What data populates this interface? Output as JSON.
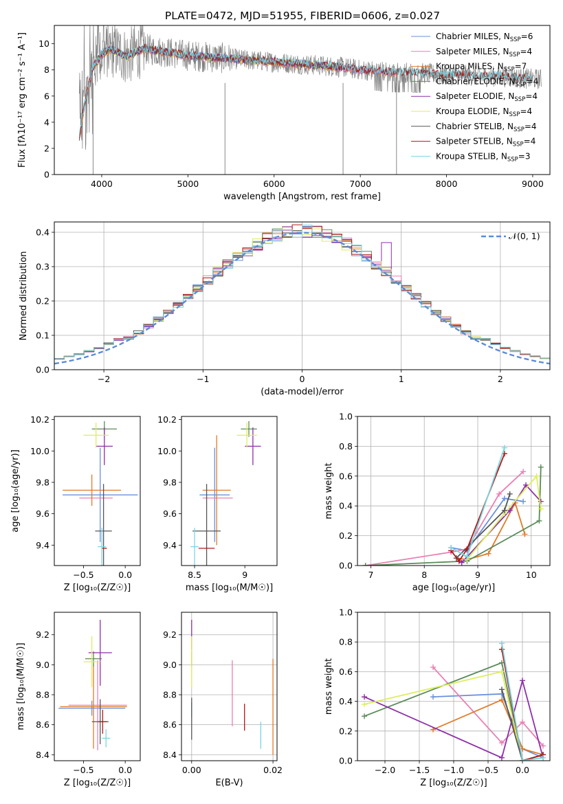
{
  "figure_title": "PLATE=0472, MJD=51955, FIBERID=0606, z=0.027",
  "colors": {
    "Chabrier MILES": "#6a8fdc",
    "Salpeter MILES": "#e87fb4",
    "Kroupa MILES": "#e07b28",
    "Chabrier ELODIE": "#5a8a5a",
    "Salpeter ELODIE": "#8e2ea8",
    "Kroupa ELODIE": "#dcee5a",
    "Chabrier STELIB": "#555555",
    "Salpeter STELIB": "#b01818",
    "Kroupa STELIB": "#7ad6e0",
    "data": "#808080",
    "normal": "#5b8bd6"
  },
  "chart_data": [
    {
      "type": "line",
      "id": "spectrum",
      "xlabel": "wavelength [Angstrom, rest frame]",
      "ylabel": "Flux [fλ10⁻¹⁷ erg cm⁻² s⁻¹ A⁻¹]",
      "xlim": [
        3450,
        9200
      ],
      "ylim": [
        0,
        11.4
      ],
      "xticks": [
        4000,
        5000,
        6000,
        7000,
        8000,
        9000
      ],
      "yticks": [
        0,
        2,
        4,
        6,
        8,
        10
      ],
      "legend": [
        {
          "label": "Chabrier MILES, N",
          "sub": "SSP",
          "eq": "=6"
        },
        {
          "label": "Salpeter MILES, N",
          "sub": "SSP",
          "eq": "=4"
        },
        {
          "label": "Kroupa MILES, N",
          "sub": "SSP",
          "eq": "=7"
        },
        {
          "label": "Chabrier ELODIE, N",
          "sub": "SSP",
          "eq": "=4"
        },
        {
          "label": "Salpeter ELODIE, N",
          "sub": "SSP",
          "eq": "=4"
        },
        {
          "label": "Kroupa ELODIE, N",
          "sub": "SSP",
          "eq": "=4"
        },
        {
          "label": "Chabrier STELIB, N",
          "sub": "SSP",
          "eq": "=4"
        },
        {
          "label": "Salpeter STELIB, N",
          "sub": "SSP",
          "eq": "=4"
        },
        {
          "label": "Kroupa STELIB, N",
          "sub": "SSP",
          "eq": "=3"
        }
      ],
      "legend_placement": "upper right",
      "data_envelope": {
        "x": [
          3740,
          3800,
          3900,
          4000,
          4100,
          4200,
          4300,
          4400,
          4500,
          4600,
          4700,
          4800,
          4900,
          5000,
          5200,
          5400,
          5600,
          5800,
          6000,
          6200,
          6400,
          6600,
          6800,
          7000,
          7200,
          7400,
          7600,
          7800,
          8000,
          8200,
          8400,
          8600,
          8800,
          9000,
          9100
        ],
        "y": [
          5.5,
          7.0,
          8.2,
          9.2,
          9.6,
          9.3,
          9.0,
          9.4,
          9.6,
          9.5,
          9.4,
          9.3,
          9.2,
          9.1,
          9.0,
          8.9,
          8.8,
          8.7,
          8.6,
          8.5,
          8.4,
          8.3,
          8.2,
          8.0,
          7.9,
          7.8,
          7.8,
          7.7,
          7.6,
          7.6,
          7.5,
          7.5,
          7.4,
          7.3,
          7.3
        ]
      },
      "model_range": {
        "MILES": [
          3740,
          7420
        ],
        "ELODIE": [
          3900,
          6800
        ],
        "STELIB": [
          3740,
          9000
        ]
      }
    },
    {
      "type": "bar",
      "id": "residual_histogram",
      "xlabel": "(data-model)/error",
      "ylabel": "Normed distribution",
      "xlim": [
        -2.5,
        2.5
      ],
      "ylim": [
        0,
        0.43
      ],
      "xticks": [
        -2,
        -1,
        0,
        1,
        2
      ],
      "yticks": [
        0,
        0.1,
        0.2,
        0.3,
        0.4
      ],
      "bin_width": 0.1,
      "grid": true,
      "legend": [
        {
          "label": "𝒩(0, 1)",
          "style": "dashed"
        }
      ],
      "legend_placement": "upper right"
    },
    {
      "type": "scatter",
      "id": "Z_vs_age",
      "xlabel": "Z [log₁₀(Z/Z☉)]",
      "ylabel": "age  [log₁₀(age/yr)]",
      "xlim": [
        -0.85,
        0.18
      ],
      "ylim": [
        9.27,
        10.22
      ],
      "xticks": [
        -0.5,
        0.0
      ],
      "yticks": [
        9.4,
        9.6,
        9.8,
        10.0,
        10.2
      ],
      "points": [
        {
          "model": "Chabrier MILES",
          "x": -0.3,
          "xerr": 0.45,
          "y": 9.72,
          "yerr": 0.3
        },
        {
          "model": "Salpeter MILES",
          "x": -0.35,
          "xerr": 0.2,
          "y": 9.7,
          "yerr": 0.0
        },
        {
          "model": "Kroupa MILES",
          "x": -0.4,
          "xerr": 0.35,
          "y": 9.75,
          "yerr": 0.1
        },
        {
          "model": "Chabrier ELODIE",
          "x": -0.25,
          "xerr": 0.15,
          "y": 10.14,
          "yerr": 0.05
        },
        {
          "model": "Salpeter ELODIE",
          "x": -0.25,
          "xerr": 0.1,
          "y": 10.03,
          "yerr": 0.12
        },
        {
          "model": "Kroupa ELODIE",
          "x": -0.35,
          "xerr": 0.15,
          "y": 10.1,
          "yerr": 0.08
        },
        {
          "model": "Chabrier STELIB",
          "x": -0.26,
          "xerr": 0.1,
          "y": 9.49,
          "yerr": 0.3
        },
        {
          "model": "Salpeter STELIB",
          "x": -0.25,
          "xerr": 0.03,
          "y": 9.38,
          "yerr": 0.0
        },
        {
          "model": "Kroupa STELIB",
          "x": -0.28,
          "xerr": 0.05,
          "y": 9.39,
          "yerr": 0.12
        }
      ]
    },
    {
      "type": "scatter",
      "id": "mass_vs_age",
      "xlabel": "mass [log₁₀(M/M☉)]",
      "ylabel": "",
      "xlim": [
        8.37,
        9.32
      ],
      "ylim": [
        9.27,
        10.22
      ],
      "xticks": [
        8.5,
        9.0
      ],
      "yticks": [
        9.4,
        9.6,
        9.8,
        10.0,
        10.2
      ],
      "points": [
        {
          "model": "Chabrier MILES",
          "x": 8.7,
          "xerr": 0.15,
          "y": 9.72,
          "yerr": 0.3
        },
        {
          "model": "Salpeter MILES",
          "x": 8.73,
          "xerr": 0.15,
          "y": 9.7,
          "yerr": 0.0
        },
        {
          "model": "Kroupa MILES",
          "x": 8.72,
          "xerr": 0.14,
          "y": 9.75,
          "yerr": 0.35
        },
        {
          "model": "Chabrier ELODIE",
          "x": 9.04,
          "xerr": 0.08,
          "y": 10.14,
          "yerr": 0.05
        },
        {
          "model": "Salpeter ELODIE",
          "x": 9.08,
          "xerr": 0.08,
          "y": 10.03,
          "yerr": 0.12
        },
        {
          "model": "Kroupa ELODIE",
          "x": 9.02,
          "xerr": 0.1,
          "y": 10.1,
          "yerr": 0.08
        },
        {
          "model": "Chabrier STELIB",
          "x": 8.62,
          "xerr": 0.14,
          "y": 9.49,
          "yerr": 0.3
        },
        {
          "model": "Salpeter STELIB",
          "x": 8.62,
          "xerr": 0.08,
          "y": 9.38,
          "yerr": 0.0
        },
        {
          "model": "Kroupa STELIB",
          "x": 8.5,
          "xerr": 0.04,
          "y": 9.39,
          "yerr": 0.12
        }
      ]
    },
    {
      "type": "line",
      "id": "age_vs_mass_weight",
      "xlabel": "age  [log₁₀(age/yr)]",
      "ylabel": "mass weight",
      "xlim": [
        6.75,
        10.35
      ],
      "ylim": [
        0,
        1.0
      ],
      "xticks": [
        7,
        8,
        9,
        10
      ],
      "yticks": [
        0,
        0.2,
        0.4,
        0.6,
        0.8,
        1.0
      ],
      "grid": true,
      "series": [
        {
          "model": "Chabrier MILES",
          "x": [
            8.5,
            8.8,
            9.5,
            9.85
          ],
          "y": [
            0.12,
            0.1,
            0.45,
            0.43
          ]
        },
        {
          "model": "Salpeter MILES",
          "x": [
            6.9,
            8.5,
            8.8,
            9.4,
            9.85
          ],
          "y": [
            0.0,
            0.09,
            0.11,
            0.48,
            0.63
          ]
        },
        {
          "model": "Kroupa MILES",
          "x": [
            8.6,
            8.8,
            9.2,
            9.7,
            9.88
          ],
          "y": [
            0.05,
            0.04,
            0.08,
            0.42,
            0.21
          ]
        },
        {
          "model": "Chabrier ELODIE",
          "x": [
            6.9,
            8.8,
            10.15,
            10.18
          ],
          "y": [
            0.0,
            0.03,
            0.3,
            0.66
          ]
        },
        {
          "model": "Salpeter ELODIE",
          "x": [
            8.7,
            9.6,
            9.9,
            10.18
          ],
          "y": [
            0.02,
            0.37,
            0.54,
            0.43
          ]
        },
        {
          "model": "Kroupa ELODIE",
          "x": [
            8.8,
            9.5,
            10.1,
            10.18
          ],
          "y": [
            0.04,
            0.35,
            0.6,
            0.38
          ]
        },
        {
          "model": "Chabrier STELIB",
          "x": [
            8.6,
            9.5,
            9.6
          ],
          "y": [
            0.05,
            0.37,
            0.48
          ]
        },
        {
          "model": "Salpeter STELIB",
          "x": [
            8.5,
            8.65,
            8.8,
            9.5
          ],
          "y": [
            0.1,
            0.03,
            0.11,
            0.75
          ]
        },
        {
          "model": "Kroupa STELIB",
          "x": [
            8.5,
            8.8,
            9.5
          ],
          "y": [
            0.12,
            0.06,
            0.79
          ]
        }
      ]
    },
    {
      "type": "scatter",
      "id": "Z_vs_mass",
      "xlabel": "Z [log₁₀(Z/Z☉)]",
      "ylabel": "mass [log₁₀(M/M☉)]",
      "xlim": [
        -0.85,
        0.18
      ],
      "ylim": [
        8.36,
        9.35
      ],
      "xticks": [
        -0.5,
        0.0
      ],
      "yticks": [
        8.4,
        8.6,
        8.8,
        9.0,
        9.2
      ],
      "points": [
        {
          "model": "Chabrier MILES",
          "x": -0.4,
          "xerr": 0.4,
          "y": 8.71,
          "yerr": 0.05
        },
        {
          "model": "Salpeter MILES",
          "x": -0.33,
          "xerr": 0.35,
          "y": 8.73,
          "yerr": 0.3
        },
        {
          "model": "Kroupa MILES",
          "x": -0.38,
          "xerr": 0.4,
          "y": 8.72,
          "yerr": 0.28
        },
        {
          "model": "Chabrier ELODIE",
          "x": -0.38,
          "xerr": 0.1,
          "y": 9.04,
          "yerr": 0.05
        },
        {
          "model": "Salpeter ELODIE",
          "x": -0.3,
          "xerr": 0.14,
          "y": 9.08,
          "yerr": 0.22
        },
        {
          "model": "Kroupa ELODIE",
          "x": -0.4,
          "xerr": 0.1,
          "y": 9.02,
          "yerr": 0.17
        },
        {
          "model": "Chabrier STELIB",
          "x": -0.3,
          "xerr": 0.1,
          "y": 8.62,
          "yerr": 0.15
        },
        {
          "model": "Salpeter STELIB",
          "x": -0.27,
          "xerr": 0.05,
          "y": 8.62,
          "yerr": 0.08
        },
        {
          "model": "Kroupa STELIB",
          "x": -0.23,
          "xerr": 0.05,
          "y": 8.51,
          "yerr": 0.06
        }
      ]
    },
    {
      "type": "scatter",
      "id": "EBV_vs_mass",
      "xlabel": "E(B-V)",
      "ylabel": "",
      "xlim": [
        -0.0025,
        0.021
      ],
      "ylim": [
        8.36,
        9.35
      ],
      "xticks": [
        0.0,
        0.02
      ],
      "xticklabels": [
        "0.00",
        "0.02"
      ],
      "yticks": [
        8.4,
        8.6,
        8.8,
        9.0,
        9.2
      ],
      "grid": true,
      "points": [
        {
          "model": "Chabrier MILES",
          "x": 0.0,
          "y": 8.7,
          "yerr": 0.05
        },
        {
          "model": "Salpeter MILES",
          "x": 0.01,
          "y": 8.81,
          "yerr": 0.22
        },
        {
          "model": "Kroupa MILES",
          "x": 0.02,
          "y": 8.72,
          "yerr": 0.32
        },
        {
          "model": "Chabrier ELODIE",
          "x": 0.0,
          "y": 9.04,
          "yerr": 0.05
        },
        {
          "model": "Salpeter ELODIE",
          "x": 0.0,
          "y": 9.2,
          "yerr": 0.1
        },
        {
          "model": "Kroupa ELODIE",
          "x": 0.0,
          "y": 9.02,
          "yerr": 0.17
        },
        {
          "model": "Chabrier STELIB",
          "x": 0.0,
          "y": 8.64,
          "yerr": 0.14
        },
        {
          "model": "Salpeter STELIB",
          "x": 0.013,
          "y": 8.65,
          "yerr": 0.09
        },
        {
          "model": "Kroupa STELIB",
          "x": 0.017,
          "y": 8.53,
          "yerr": 0.09
        }
      ]
    },
    {
      "type": "line",
      "id": "Z_vs_mass_weight",
      "xlabel": "Z [log₁₀(Z/Z☉)]",
      "ylabel": "mass weight",
      "xlim": [
        -2.4,
        0.4
      ],
      "ylim": [
        0,
        1.0
      ],
      "xticks": [
        -2.0,
        -1.5,
        -1.0,
        -0.5,
        0.0
      ],
      "yticks": [
        0,
        0.2,
        0.4,
        0.6,
        0.8,
        1.0
      ],
      "grid": true,
      "series": [
        {
          "model": "Chabrier MILES",
          "x": [
            -1.3,
            -0.3,
            0.0,
            0.3
          ],
          "y": [
            0.43,
            0.45,
            0.08,
            0.02
          ]
        },
        {
          "model": "Salpeter MILES",
          "x": [
            -1.3,
            -0.3,
            0.0,
            0.3
          ],
          "y": [
            0.63,
            0.12,
            0.26,
            0.1
          ]
        },
        {
          "model": "Kroupa MILES",
          "x": [
            -1.3,
            -0.3,
            0.0,
            0.3
          ],
          "y": [
            0.21,
            0.41,
            0.08,
            0.04
          ]
        },
        {
          "model": "Chabrier ELODIE",
          "x": [
            -2.3,
            -0.3,
            0.0,
            0.3
          ],
          "y": [
            0.3,
            0.66,
            0.0,
            0.04
          ]
        },
        {
          "model": "Salpeter ELODIE",
          "x": [
            -2.3,
            -0.3,
            0.0,
            0.3
          ],
          "y": [
            0.43,
            0.02,
            0.54,
            0.02
          ]
        },
        {
          "model": "Kroupa ELODIE",
          "x": [
            -2.3,
            -0.3,
            0.0,
            0.3
          ],
          "y": [
            0.38,
            0.6,
            0.0,
            0.02
          ]
        },
        {
          "model": "Chabrier STELIB",
          "x": [
            -0.3,
            0.0,
            0.3
          ],
          "y": [
            0.48,
            0.0,
            0.04
          ]
        },
        {
          "model": "Salpeter STELIB",
          "x": [
            -0.3,
            0.0,
            0.3
          ],
          "y": [
            0.75,
            0.0,
            0.04
          ]
        },
        {
          "model": "Kroupa STELIB",
          "x": [
            -0.3,
            0.0,
            0.3
          ],
          "y": [
            0.79,
            0.0,
            0.02
          ]
        }
      ]
    }
  ]
}
